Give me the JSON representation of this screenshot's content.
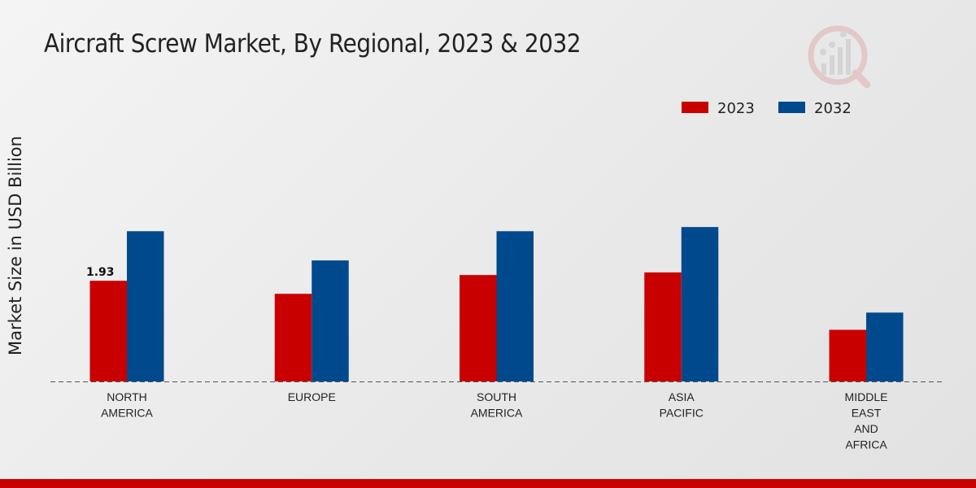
{
  "chart_data": {
    "type": "bar",
    "title": "Aircraft Screw Market, By Regional, 2023 & 2032",
    "xlabel": "",
    "ylabel": "Market Size in USD Billion",
    "categories": [
      [
        "NORTH",
        "AMERICA"
      ],
      [
        "EUROPE"
      ],
      [
        "SOUTH",
        "AMERICA"
      ],
      [
        "ASIA",
        "PACIFIC"
      ],
      [
        "MIDDLE",
        "EAST",
        "AND",
        "AFRICA"
      ]
    ],
    "series": [
      {
        "name": "2023",
        "color": "#c90000",
        "values": [
          1.93,
          1.68,
          2.04,
          2.09,
          0.99
        ]
      },
      {
        "name": "2032",
        "color": "#00498c",
        "values": [
          2.88,
          2.32,
          2.88,
          2.96,
          1.32
        ]
      }
    ],
    "data_labels": [
      {
        "series": 0,
        "index": 0,
        "text": "1.93"
      }
    ],
    "ylim": [
      0,
      7
    ],
    "grid": false,
    "legend": "top-right"
  },
  "colors": {
    "accent_bar": "#c90000",
    "title": "#222222"
  }
}
